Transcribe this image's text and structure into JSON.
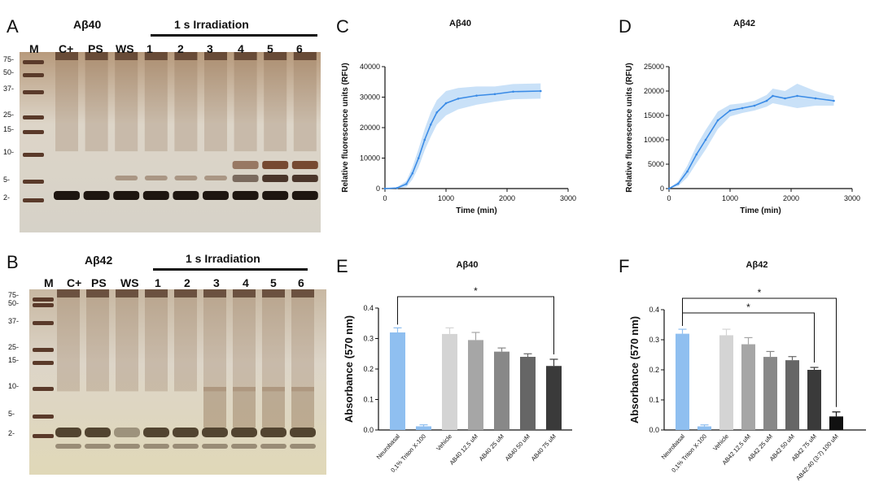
{
  "colors": {
    "blue": "#8fbff0",
    "blue_line": "#3a8be6",
    "blue_band": "#bcd9f6",
    "gel_bg": "#d8cfc0",
    "band": "#2a2018"
  },
  "panelA": {
    "letter": "A",
    "title": "Aβ40",
    "header": "1 s Irradiation",
    "lanes": [
      "M",
      "C+",
      "PS",
      "WS",
      "1",
      "2",
      "3",
      "4",
      "5",
      "6"
    ],
    "markers": [
      "75",
      "50",
      "37",
      "25",
      "15",
      "10",
      "5",
      "2"
    ]
  },
  "panelB": {
    "letter": "B",
    "title": "Aβ42",
    "header": "1 s Irradiation",
    "lanes": [
      "M",
      "C+",
      "PS",
      "WS",
      "1",
      "2",
      "3",
      "4",
      "5",
      "6"
    ],
    "markers": [
      "75",
      "50",
      "37",
      "25",
      "15",
      "10",
      "5",
      "2"
    ]
  },
  "chart_data": [
    {
      "id": "C",
      "type": "line",
      "title": "Aβ40",
      "xlabel": "Time (min)",
      "ylabel": "Relative fluorescence units (RFU)",
      "xlim": [
        0,
        3000
      ],
      "ylim": [
        0,
        40000
      ],
      "xticks": [
        "0",
        "1000",
        "2000",
        "3000"
      ],
      "yticks": [
        "0",
        "10000",
        "20000",
        "30000",
        "40000"
      ],
      "series": [
        {
          "name": "Aβ40",
          "x": [
            0,
            200,
            350,
            450,
            550,
            650,
            750,
            850,
            1000,
            1200,
            1500,
            1800,
            2100,
            2550
          ],
          "y": [
            0,
            200,
            1500,
            5000,
            10000,
            16000,
            21000,
            25000,
            28000,
            29500,
            30500,
            31000,
            31800,
            32000
          ],
          "band": [
            0,
            300,
            1000,
            2000,
            3000,
            3500,
            4000,
            4000,
            4000,
            3500,
            3000,
            2500,
            2500,
            2500
          ]
        }
      ]
    },
    {
      "id": "D",
      "type": "line",
      "title": "Aβ42",
      "xlabel": "Time (min)",
      "ylabel": "Relative fluorescence units (RFU)",
      "xlim": [
        0,
        3000
      ],
      "ylim": [
        0,
        25000
      ],
      "xticks": [
        "0",
        "1000",
        "2000",
        "3000"
      ],
      "yticks": [
        "0",
        "5000",
        "10000",
        "15000",
        "20000",
        "25000"
      ],
      "series": [
        {
          "name": "Aβ42",
          "x": [
            0,
            150,
            300,
            450,
            600,
            800,
            1000,
            1200,
            1400,
            1600,
            1700,
            1900,
            2100,
            2400,
            2700
          ],
          "y": [
            0,
            1000,
            3500,
            7000,
            10000,
            14000,
            16000,
            16500,
            17000,
            18000,
            19000,
            18500,
            19000,
            18500,
            18000
          ],
          "band": [
            0,
            500,
            1200,
            1800,
            2000,
            1800,
            1200,
            1000,
            1000,
            1200,
            1500,
            1500,
            2500,
            1500,
            1000
          ]
        }
      ]
    },
    {
      "id": "E",
      "type": "bar",
      "title": "Aβ40",
      "ylabel": "Absorbance (570 nm)",
      "ylim": [
        0,
        0.4
      ],
      "yticks": [
        "0.0",
        "0.1",
        "0.2",
        "0.3",
        "0.4"
      ],
      "categories": [
        "Neurobasal",
        "0,1% Triton X-100",
        "Vehicle",
        "AB40 12,5 uM",
        "AB40 25 uM",
        "AB40 50 uM",
        "AB40 75 uM"
      ],
      "values": [
        0.32,
        0.012,
        0.315,
        0.295,
        0.257,
        0.24,
        0.21
      ],
      "errors": [
        0.015,
        0.005,
        0.02,
        0.025,
        0.012,
        0.01,
        0.022
      ],
      "bar_colors": [
        "#8fbff0",
        "#8fbff0",
        "#d4d4d4",
        "#a6a6a6",
        "#888888",
        "#666666",
        "#3a3a3a"
      ],
      "significance": [
        {
          "from": 0,
          "to": 6,
          "label": "*"
        }
      ]
    },
    {
      "id": "F",
      "type": "bar",
      "title": "Aβ42",
      "ylabel": "Absorbance (570 nm)",
      "ylim": [
        0,
        0.4
      ],
      "yticks": [
        "0.0",
        "0.1",
        "0.2",
        "0.3",
        "0.4"
      ],
      "categories": [
        "Neurobasal",
        "0,1% Triton X-100",
        "Vehicle",
        "AB42 12,5 uM",
        "AB42 25 uM",
        "AB42 50 uM",
        "AB42 75 uM",
        "AB42:40 (3:7) 100 uM"
      ],
      "values": [
        0.32,
        0.012,
        0.315,
        0.285,
        0.243,
        0.232,
        0.2,
        0.045
      ],
      "errors": [
        0.015,
        0.005,
        0.02,
        0.022,
        0.018,
        0.012,
        0.008,
        0.015
      ],
      "bar_colors": [
        "#8fbff0",
        "#8fbff0",
        "#d4d4d4",
        "#a6a6a6",
        "#888888",
        "#666666",
        "#3a3a3a",
        "#111111"
      ],
      "significance": [
        {
          "from": 0,
          "to": 7,
          "label": "*"
        },
        {
          "from": 0,
          "to": 6,
          "label": "*"
        }
      ]
    }
  ]
}
